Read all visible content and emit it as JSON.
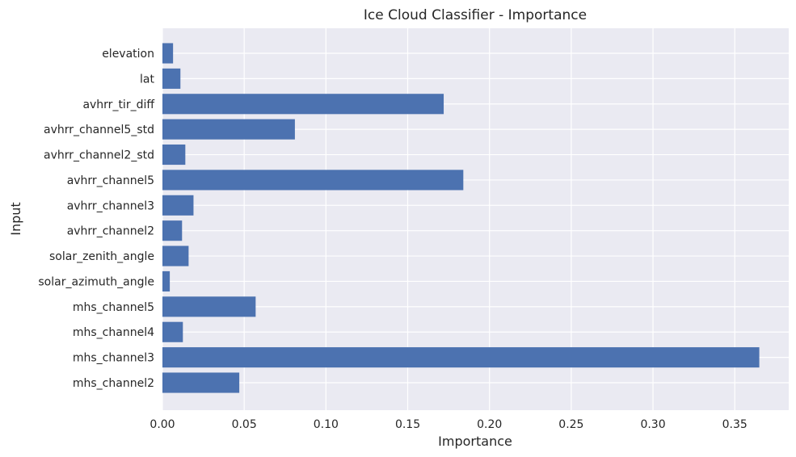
{
  "chart_data": {
    "type": "bar",
    "orientation": "horizontal",
    "title": "Ice Cloud Classifier - Importance",
    "xlabel": "Importance",
    "ylabel": "Input",
    "categories": [
      "elevation",
      "lat",
      "avhrr_tir_diff",
      "avhrr_channel5_std",
      "avhrr_channel2_std",
      "avhrr_channel5",
      "avhrr_channel3",
      "avhrr_channel2",
      "solar_zenith_angle",
      "solar_azimuth_angle",
      "mhs_channel5",
      "mhs_channel4",
      "mhs_channel3",
      "mhs_channel2"
    ],
    "values": [
      0.0065,
      0.011,
      0.172,
      0.081,
      0.014,
      0.184,
      0.019,
      0.012,
      0.016,
      0.0045,
      0.057,
      0.0125,
      0.365,
      0.047
    ],
    "xlim": [
      0,
      0.383
    ],
    "xticks": [
      0.0,
      0.05,
      0.1,
      0.15,
      0.2,
      0.25,
      0.3,
      0.35
    ],
    "xtick_labels": [
      "0.00",
      "0.05",
      "0.10",
      "0.15",
      "0.20",
      "0.25",
      "0.30",
      "0.35"
    ],
    "grid": true,
    "bar_color": "#4c72b0",
    "background_color": "#eaeaf2",
    "grid_color": "#ffffff"
  }
}
